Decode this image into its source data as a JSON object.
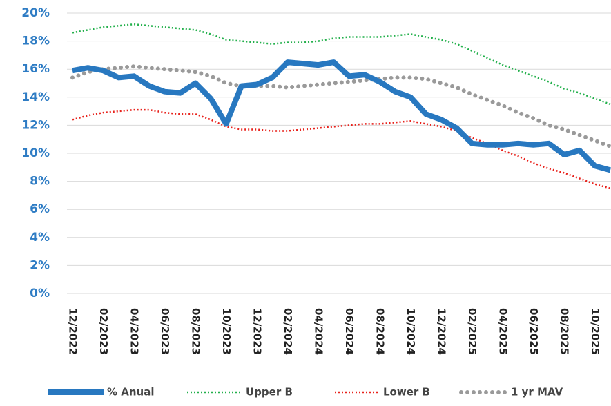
{
  "chart_data": {
    "type": "line",
    "categories": [
      "12/2022",
      null,
      "02/2023",
      null,
      "04/2023",
      null,
      "06/2023",
      null,
      "08/2023",
      null,
      "10/2023",
      null,
      "12/2023",
      null,
      "02/2024",
      null,
      "04/2024",
      null,
      "06/2024",
      null,
      "08/2024",
      null,
      "10/2024",
      null,
      "12/2024",
      null,
      "02/2025",
      null,
      "04/2025",
      null,
      "06/2025",
      null,
      "08/2025",
      null,
      "10/2025",
      null
    ],
    "series": [
      {
        "name": "% Anual",
        "color": "#2878c0",
        "style": "thick",
        "values": [
          15.9,
          16.1,
          15.9,
          15.4,
          15.5,
          14.8,
          14.4,
          14.3,
          15.0,
          13.9,
          12.1,
          14.8,
          14.9,
          15.4,
          16.5,
          16.4,
          16.3,
          16.5,
          15.5,
          15.6,
          15.1,
          14.4,
          14.0,
          12.8,
          12.4,
          11.8,
          10.7,
          10.6,
          10.6,
          10.7,
          10.6,
          10.7,
          9.9,
          10.2,
          9.1,
          8.8
        ]
      },
      {
        "name": "Upper B",
        "color": "#22b04b",
        "style": "dotted",
        "values": [
          18.6,
          18.8,
          19.0,
          19.1,
          19.2,
          19.1,
          19.0,
          18.9,
          18.8,
          18.5,
          18.1,
          18.0,
          17.9,
          17.8,
          17.9,
          17.9,
          18.0,
          18.2,
          18.3,
          18.3,
          18.3,
          18.4,
          18.5,
          18.3,
          18.1,
          17.8,
          17.3,
          16.8,
          16.3,
          15.9,
          15.5,
          15.1,
          14.6,
          14.3,
          13.9,
          13.5
        ]
      },
      {
        "name": "Lower B",
        "color": "#e8221c",
        "style": "dotted",
        "values": [
          12.4,
          12.7,
          12.9,
          13.0,
          13.1,
          13.1,
          12.9,
          12.8,
          12.8,
          12.4,
          11.9,
          11.7,
          11.7,
          11.6,
          11.6,
          11.7,
          11.8,
          11.9,
          12.0,
          12.1,
          12.1,
          12.2,
          12.3,
          12.1,
          11.9,
          11.6,
          11.1,
          10.7,
          10.2,
          9.8,
          9.3,
          8.9,
          8.6,
          8.2,
          7.8,
          7.5
        ]
      },
      {
        "name": "1 yr MAV",
        "color": "#9a9a9a",
        "style": "dots",
        "values": [
          15.4,
          15.8,
          16.0,
          16.1,
          16.2,
          16.1,
          16.0,
          15.9,
          15.8,
          15.5,
          15.0,
          14.8,
          14.8,
          14.8,
          14.7,
          14.8,
          14.9,
          15.0,
          15.1,
          15.2,
          15.3,
          15.4,
          15.4,
          15.3,
          15.0,
          14.7,
          14.2,
          13.8,
          13.4,
          12.9,
          12.5,
          12.0,
          11.7,
          11.3,
          10.9,
          10.5
        ]
      }
    ],
    "ylim": [
      0,
      20
    ],
    "yticks": [
      {
        "value": 0,
        "label": "0%"
      },
      {
        "value": 2,
        "label": "2%"
      },
      {
        "value": 4,
        "label": "4%"
      },
      {
        "value": 6,
        "label": "6%"
      },
      {
        "value": 8,
        "label": "8%"
      },
      {
        "value": 10,
        "label": "10%"
      },
      {
        "value": 12,
        "label": "12%"
      },
      {
        "value": 14,
        "label": "14%"
      },
      {
        "value": 16,
        "label": "16%"
      },
      {
        "value": 18,
        "label": "18%"
      },
      {
        "value": 20,
        "label": "20%"
      }
    ],
    "grid": true,
    "legend": "bottom"
  }
}
